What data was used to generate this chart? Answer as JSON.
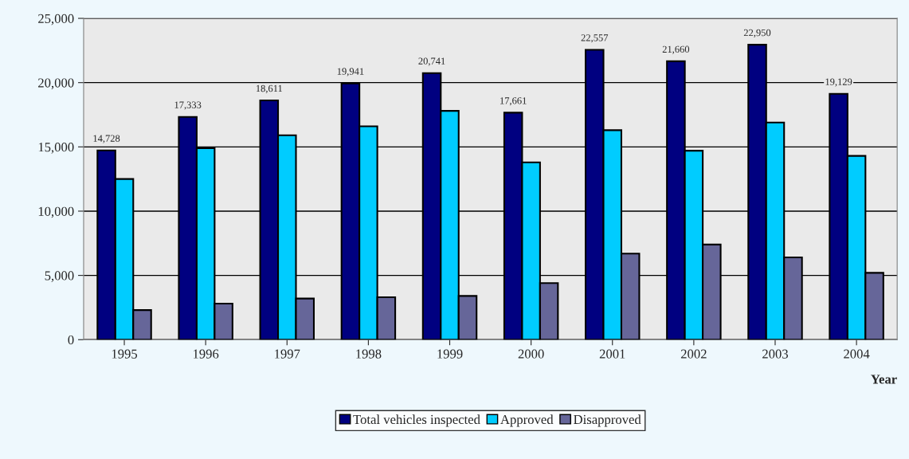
{
  "chart_data": {
    "type": "bar",
    "xlabel": "Year",
    "categories": [
      "1995",
      "1996",
      "1997",
      "1998",
      "1999",
      "2000",
      "2001",
      "2002",
      "2003",
      "2004"
    ],
    "series": [
      {
        "name": "Total vehicles inspected",
        "color": "#000080",
        "values": [
          14728,
          17333,
          18611,
          19941,
          20741,
          17661,
          22557,
          21660,
          22950,
          19129
        ],
        "value_labels": [
          "14,728",
          "17,333",
          "18,611",
          "19,941",
          "20,741",
          "17,661",
          "22,557",
          "21,660",
          "22,950",
          "19,129"
        ]
      },
      {
        "name": "Approved",
        "color": "#00ccff",
        "values": [
          12500,
          14900,
          15900,
          16600,
          17800,
          13800,
          16300,
          14700,
          16900,
          14300
        ]
      },
      {
        "name": "Disapproved",
        "color": "#666699",
        "values": [
          2300,
          2800,
          3200,
          3300,
          3400,
          4400,
          6700,
          7400,
          6400,
          5200
        ]
      }
    ],
    "ylim": [
      0,
      25000
    ],
    "yticks": [
      {
        "value": 0,
        "label": "0"
      },
      {
        "value": 5000,
        "label": "5,000"
      },
      {
        "value": 10000,
        "label": "10,000"
      },
      {
        "value": 15000,
        "label": "15,000"
      },
      {
        "value": 20000,
        "label": "20,000"
      },
      {
        "value": 25000,
        "label": "25,000"
      }
    ],
    "grid": "y",
    "legend": "bottom"
  }
}
